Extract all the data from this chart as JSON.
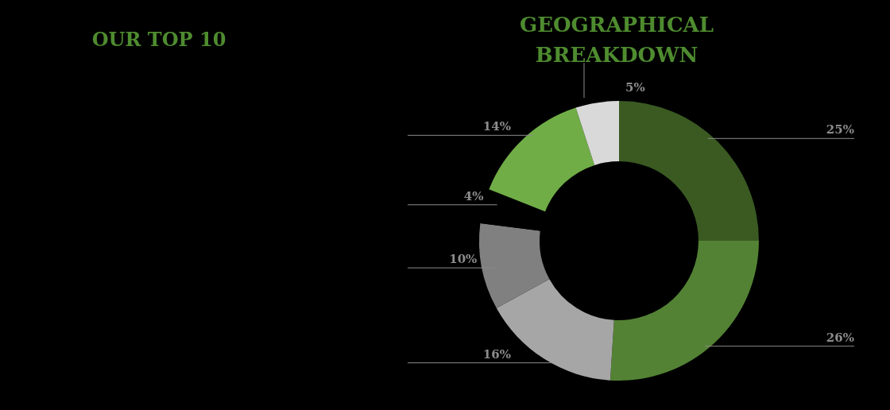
{
  "chart_data": {
    "type": "donut",
    "title": "GEOGRAPHICAL BREAKDOWN",
    "annotations": [
      "OUR TOP 10"
    ],
    "categories": [
      null,
      null,
      null,
      null,
      null,
      null,
      null
    ],
    "values": [
      25,
      26,
      16,
      10,
      4,
      14,
      5
    ],
    "colors": [
      "#3a5a22",
      "#538234",
      "#a6a6a6",
      "#808080",
      "#000000",
      "#70ad47",
      "#d9d9d9"
    ],
    "value_labels": [
      "25%",
      "26%",
      "16%",
      "10%",
      "4%",
      "14%",
      "5%"
    ]
  }
}
